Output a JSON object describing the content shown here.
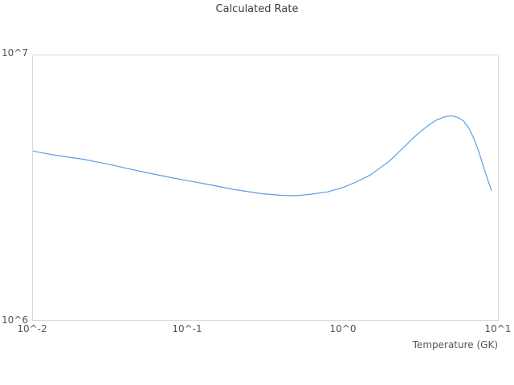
{
  "chart": {
    "title": "Calculated Rate",
    "x_axis_label": "Temperature (GK)",
    "x_ticks": [
      "10^-2",
      "10^-1",
      "10^0",
      "10^1"
    ],
    "y_ticks": [
      "10^6",
      "10^7"
    ],
    "border_color": "#d9d9d9",
    "line_color": "#5b9ce6",
    "background_color": "#ffffff"
  },
  "chart_data": {
    "type": "line",
    "title": "Calculated Rate",
    "xlabel": "Temperature (GK)",
    "ylabel": "",
    "x_scale": "log",
    "y_scale": "log",
    "xlim": [
      0.01,
      10
    ],
    "ylim": [
      1000000,
      10000000
    ],
    "x_tick_labels": [
      "10^-2",
      "10^-1",
      "10^0",
      "10^1"
    ],
    "y_tick_labels": [
      "10^6",
      "10^7"
    ],
    "grid": false,
    "legend_position": "none",
    "series": [
      {
        "name": "calculated-rate",
        "color": "#5b9ce6",
        "x": [
          0.01,
          0.012,
          0.015,
          0.021,
          0.03,
          0.042,
          0.06,
          0.08,
          0.1,
          0.14,
          0.2,
          0.3,
          0.4,
          0.5,
          0.6,
          0.8,
          1.0,
          1.2,
          1.5,
          2.0,
          2.5,
          3.0,
          3.5,
          4.0,
          4.5,
          5.0,
          5.5,
          6.0,
          6.5,
          7.0,
          7.5,
          8.0,
          8.5,
          9.1
        ],
        "y": [
          4350000,
          4260000,
          4170000,
          4050000,
          3890000,
          3720000,
          3560000,
          3440000,
          3360000,
          3240000,
          3110000,
          3000000,
          2960000,
          2950000,
          2980000,
          3050000,
          3170000,
          3310000,
          3530000,
          3990000,
          4530000,
          5020000,
          5400000,
          5690000,
          5850000,
          5910000,
          5830000,
          5650000,
          5300000,
          4850000,
          4350000,
          3860000,
          3450000,
          3080000
        ]
      }
    ]
  }
}
